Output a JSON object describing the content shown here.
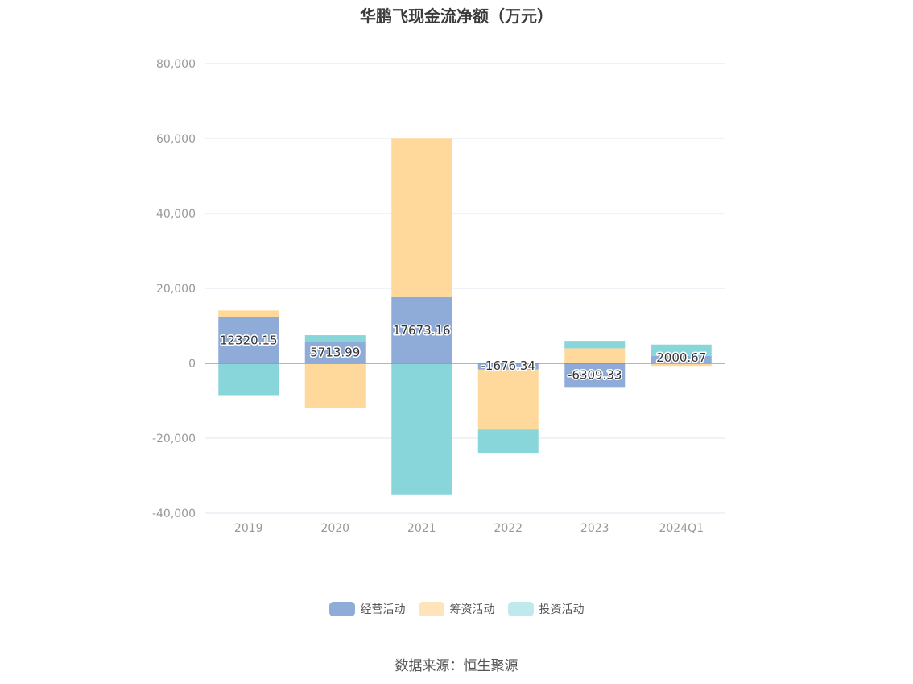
{
  "chart_data": {
    "type": "bar",
    "stacked": true,
    "title": "华鹏飞现金流净额（万元）",
    "categories": [
      "2019",
      "2020",
      "2021",
      "2022",
      "2023",
      "2024Q1"
    ],
    "series": [
      {
        "name": "经营活动",
        "color": "#8facd9",
        "values": [
          12320.15,
          5713.99,
          17673.16,
          -1676.34,
          -6309.33,
          2000.67
        ],
        "labels": [
          "12320.15",
          "5713.99",
          "17673.16",
          "-1676.34",
          "-6309.33",
          "2000.67"
        ]
      },
      {
        "name": "筹资活动",
        "color": "#ffd99b",
        "values": [
          1800,
          -12000,
          42500,
          -16000,
          4000,
          -700
        ]
      },
      {
        "name": "投资活动",
        "color": "#88d6da",
        "values": [
          -8500,
          1800,
          -35000,
          -6200,
          2000,
          3000
        ]
      }
    ],
    "yticks": [
      "80,000",
      "60,000",
      "40,000",
      "20,000",
      "0",
      "-20,000",
      "-40,000"
    ],
    "ylim": [
      -40000,
      80000
    ],
    "grid": true,
    "legend_position": "bottom"
  },
  "legend": [
    {
      "label": "经营活动",
      "color": "#8facd9"
    },
    {
      "label": "筹资活动",
      "color": "#ffe3bb"
    },
    {
      "label": "投资活动",
      "color": "#bfe9ec"
    }
  ],
  "source": "数据来源：恒生聚源"
}
